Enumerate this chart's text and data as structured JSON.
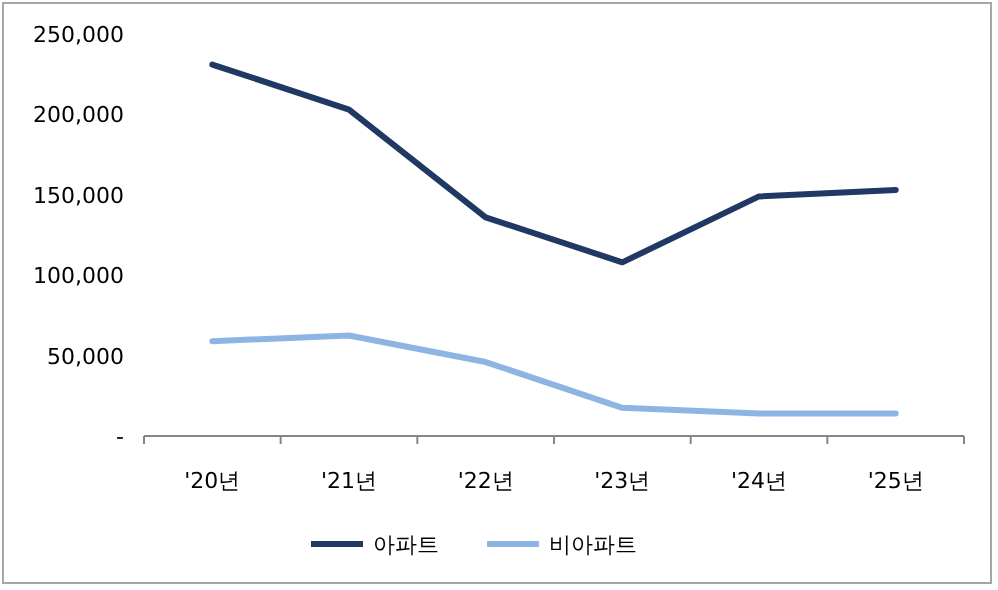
{
  "chart_data": {
    "type": "line",
    "categories": [
      "'20년",
      "'21년",
      "'22년",
      "'23년",
      "'24년",
      "'25년"
    ],
    "series": [
      {
        "name": "아파트",
        "color": "#1f3864",
        "values": [
          231000,
          203000,
          136000,
          108000,
          149000,
          153000
        ]
      },
      {
        "name": "비아파트",
        "color": "#8eb4e3",
        "values": [
          59000,
          62500,
          46000,
          17500,
          14000,
          14000
        ]
      }
    ],
    "ylim": [
      0,
      250000
    ],
    "yticks": [
      {
        "value": 0,
        "label": "-"
      },
      {
        "value": 50000,
        "label": "50,000"
      },
      {
        "value": 100000,
        "label": "100,000"
      },
      {
        "value": 150000,
        "label": "150,000"
      },
      {
        "value": 200000,
        "label": "200,000"
      },
      {
        "value": 250000,
        "label": "250,000"
      }
    ],
    "grid": false,
    "legend": "bottom",
    "marker": "none",
    "line_style": "solid"
  }
}
